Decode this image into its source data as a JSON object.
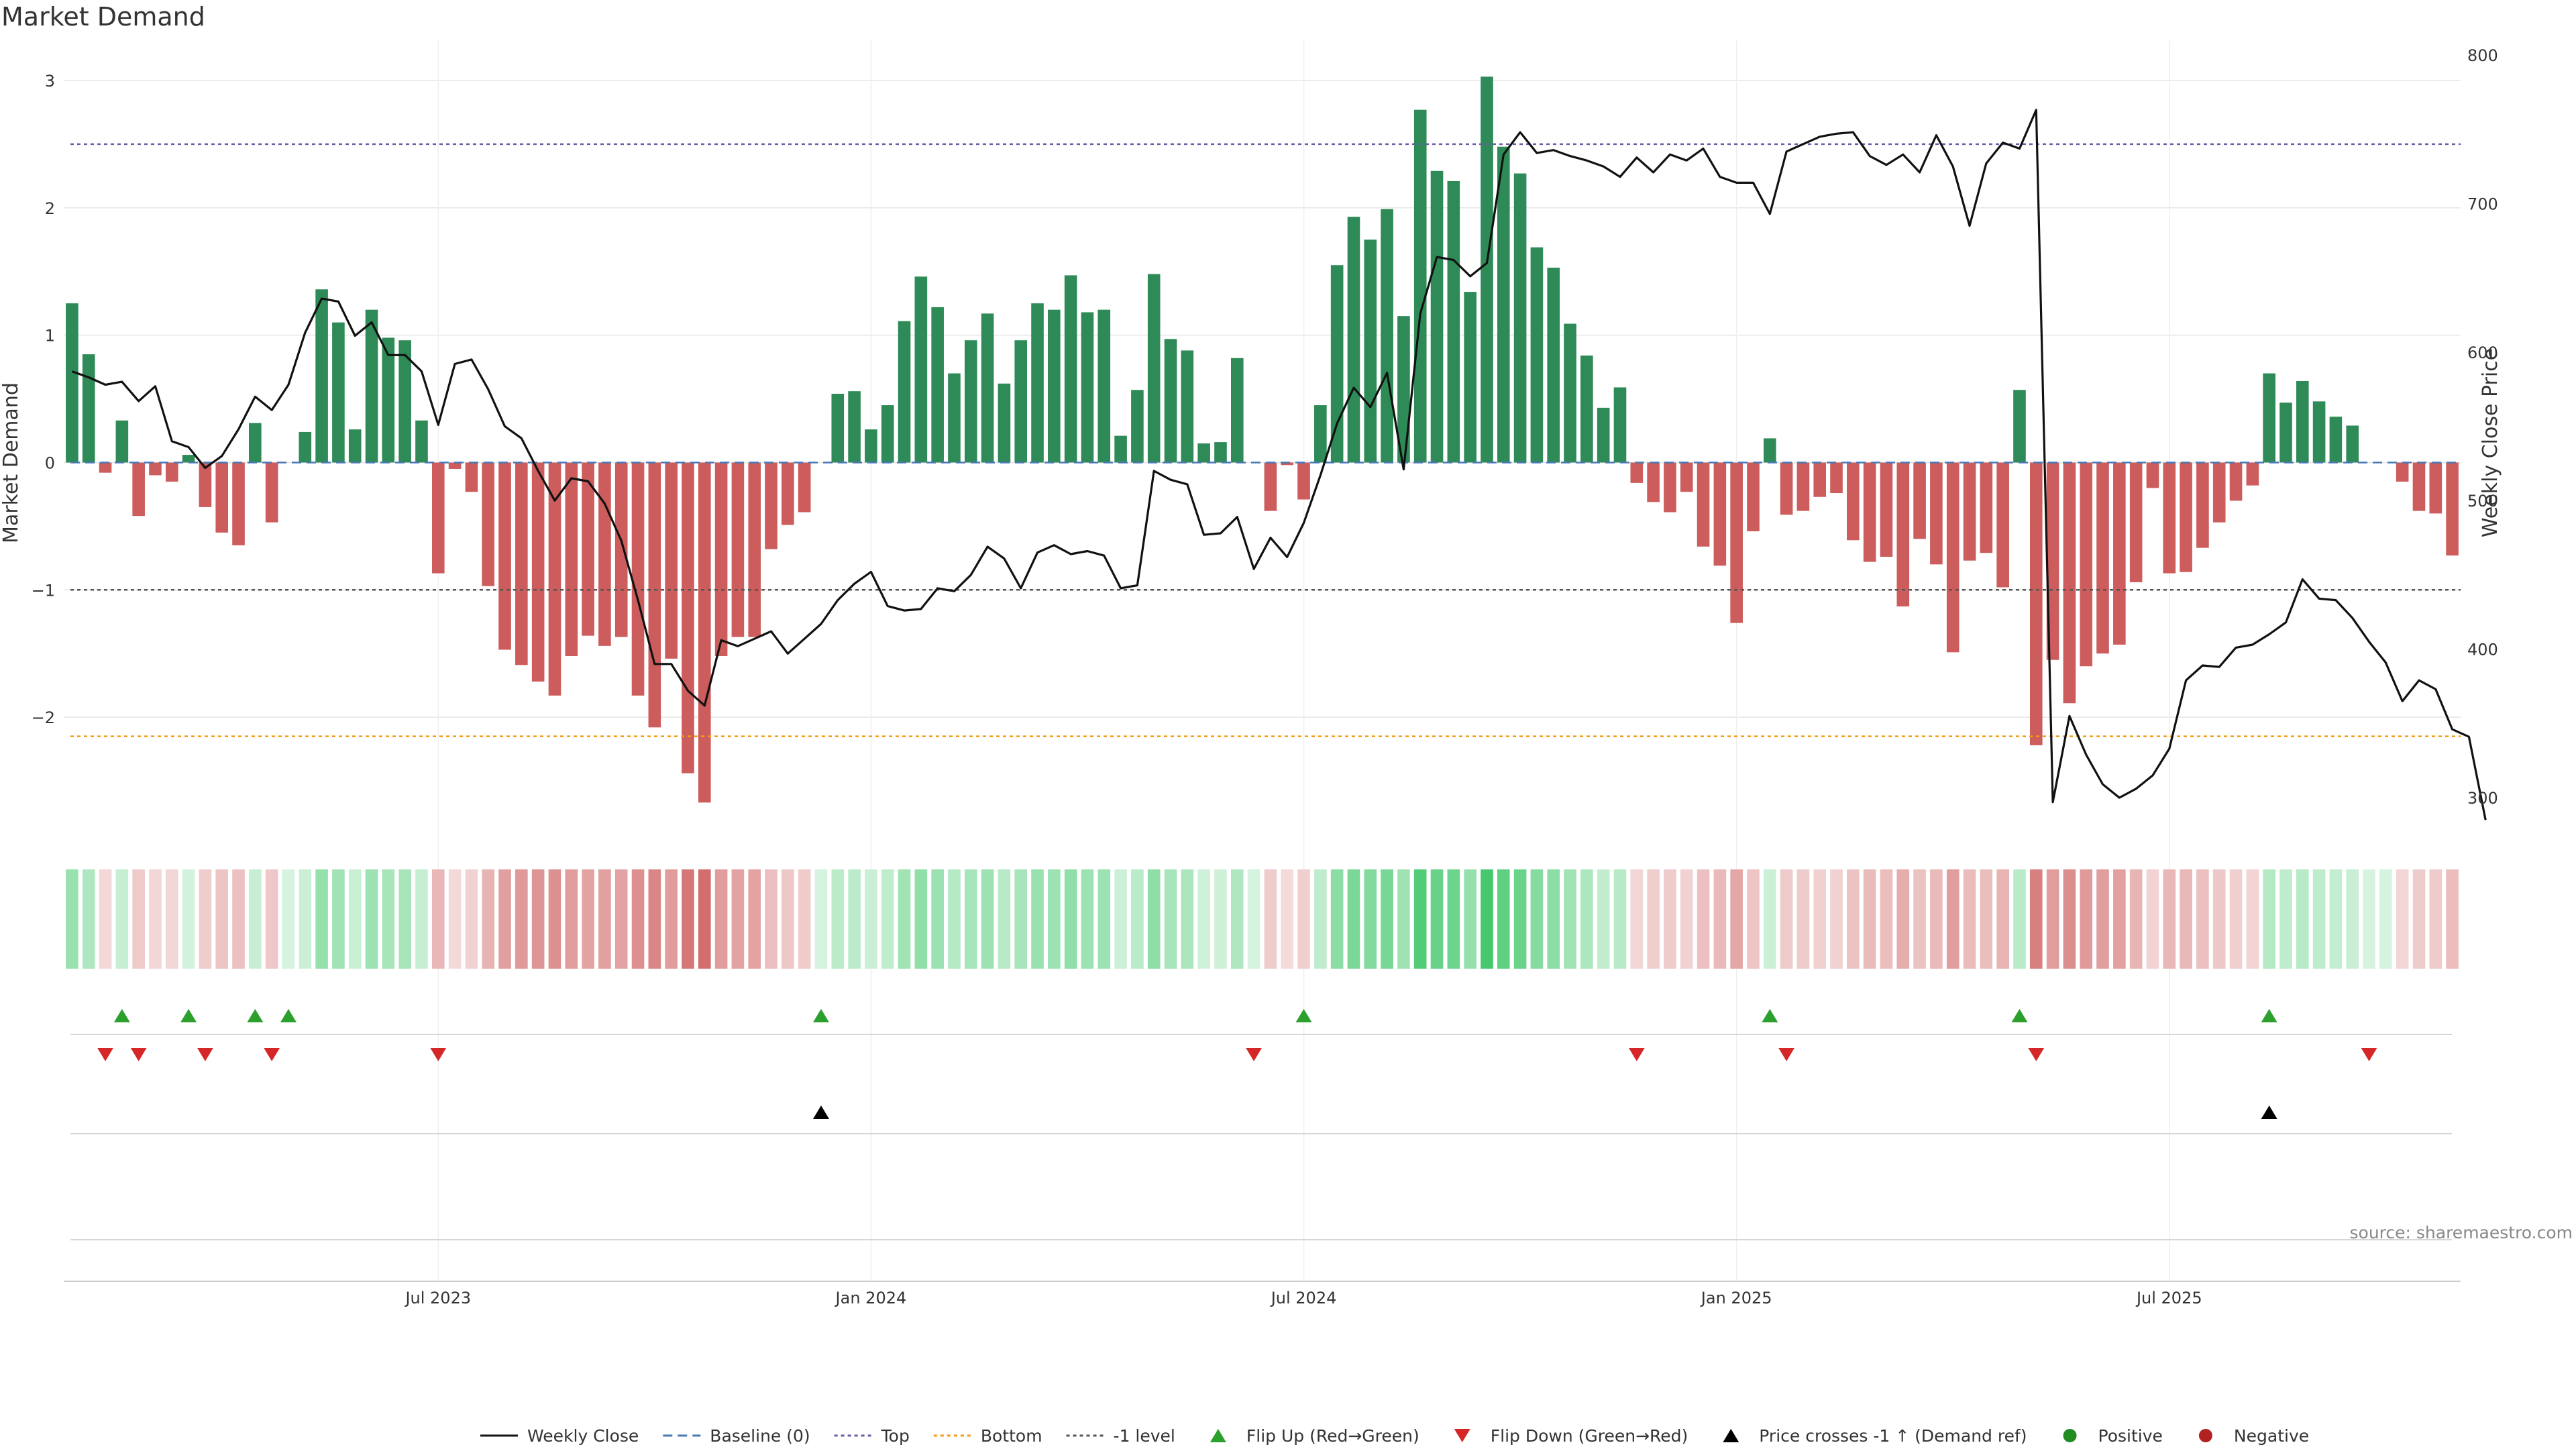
{
  "colors": {
    "positive": "#2e8b57",
    "negative": "#cd5c5c",
    "price": "#111111",
    "top_line": "#6a5aa8",
    "bottom_line": "#f39c12",
    "neg1_line": "#555555",
    "flip_up": "#2ca02c",
    "flip_down": "#d62728",
    "cross_marker": "#000000",
    "grid": "#e6e6e6"
  },
  "source_label": "source: sharemaestro.com",
  "chart_data": {
    "type": "bar",
    "title": "Market Demand",
    "ylabel": "Market Demand",
    "y2label": "Weekly Close Price",
    "ylim": [
      -2.9,
      3.2
    ],
    "y2lim": [
      277,
      800
    ],
    "yticks": [
      3,
      2,
      1,
      0,
      -1,
      -2
    ],
    "ytick_labels": [
      "3",
      "2",
      "1",
      "0",
      "−1",
      "−2"
    ],
    "y2ticks": [
      800,
      700,
      600,
      500,
      400,
      300
    ],
    "y2tick_labels": [
      "800",
      "700",
      "600",
      "500",
      "400",
      "300"
    ],
    "x_tick_indices": [
      22,
      48,
      74,
      100,
      126
    ],
    "x_tick_labels": [
      "Jul 2023",
      "Jan 2024",
      "Jul 2024",
      "Jan 2025",
      "Jul 2025"
    ],
    "weeks": 144,
    "reference_lines": {
      "top": 2.5,
      "bottom": -2.15,
      "minus_one": -1,
      "baseline": 0
    },
    "series": [
      {
        "name": "Market Demand",
        "values": [
          1.25,
          0.85,
          -0.08,
          0.33,
          -0.42,
          -0.1,
          -0.15,
          0.06,
          -0.35,
          -0.55,
          -0.65,
          0.31,
          -0.47,
          0,
          0.24,
          1.36,
          1.1,
          0.26,
          1.2,
          0.98,
          0.96,
          0.33,
          -0.87,
          -0.05,
          -0.23,
          -0.97,
          -1.47,
          -1.59,
          -1.72,
          -1.83,
          -1.52,
          -1.36,
          -1.44,
          -1.37,
          -1.83,
          -2.08,
          -1.54,
          -2.44,
          -2.67,
          -1.52,
          -1.37,
          -1.37,
          -0.68,
          -0.49,
          -0.39,
          0,
          0.54,
          0.56,
          0.26,
          0.45,
          1.11,
          1.46,
          1.22,
          0.7,
          0.96,
          1.17,
          0.62,
          0.96,
          1.25,
          1.2,
          1.47,
          1.18,
          1.2,
          0.21,
          0.57,
          1.48,
          0.97,
          0.88,
          0.15,
          0.16,
          0.82,
          0,
          -0.38,
          -0.02,
          -0.29,
          0.45,
          1.55,
          1.93,
          1.75,
          1.99,
          1.15,
          2.77,
          2.29,
          2.21,
          1.34,
          3.03,
          2.48,
          2.27,
          1.69,
          1.53,
          1.09,
          0.84,
          0.43,
          0.59,
          -0.16,
          -0.31,
          -0.39,
          -0.23,
          -0.66,
          -0.81,
          -1.26,
          -0.54,
          0.19,
          -0.41,
          -0.38,
          -0.27,
          -0.24,
          -0.61,
          -0.78,
          -0.74,
          -1.13,
          -0.6,
          -0.8,
          -1.49,
          -0.77,
          -0.71,
          -0.98,
          0.57,
          -2.22,
          -1.55,
          -1.89,
          -1.6,
          -1.5,
          -1.43,
          -0.94,
          -0.2,
          -0.87,
          -0.86,
          -0.67,
          -0.47,
          -0.3,
          -0.18,
          0.7,
          0.47,
          0.64,
          0.48,
          0.36,
          0.29,
          0,
          0,
          -0.15,
          -0.38,
          -0.4,
          -0.73
        ]
      },
      {
        "name": "Weekly Close",
        "values": [
          587,
          583,
          578,
          580,
          567,
          577,
          540,
          536,
          522,
          530,
          548,
          570,
          561,
          578,
          613,
          636,
          634,
          611,
          620,
          598,
          598,
          587,
          551,
          592,
          595,
          575,
          550,
          542,
          520,
          500,
          515,
          513,
          498,
          473,
          433,
          390,
          390,
          372,
          362,
          406,
          402,
          407,
          412,
          397,
          407,
          417,
          433,
          444,
          452,
          429,
          426,
          427,
          441,
          439,
          450,
          469,
          461,
          441,
          465,
          470,
          464,
          466,
          463,
          441,
          443,
          520,
          514,
          511,
          477,
          478,
          489,
          454,
          475,
          462,
          485,
          517,
          552,
          576,
          563,
          586,
          521,
          626,
          664,
          662,
          651,
          660,
          733,
          748,
          734,
          736,
          732,
          729,
          725,
          718,
          731,
          721,
          733,
          729,
          737,
          718,
          714,
          714,
          693,
          735,
          740,
          745,
          747,
          748,
          732,
          726,
          733,
          721,
          746,
          725,
          685,
          727,
          741,
          737,
          763,
          297,
          355,
          329,
          309,
          300,
          306,
          315,
          333,
          379,
          389,
          388,
          401,
          403,
          410,
          418,
          447,
          434,
          433,
          421,
          405,
          391,
          365,
          379,
          373,
          346,
          341,
          285
        ]
      }
    ],
    "flip_up_indices": [
      3,
      7,
      11,
      13,
      45,
      74,
      102,
      117,
      132
    ],
    "flip_down_indices": [
      2,
      4,
      8,
      12,
      22,
      71,
      94,
      103,
      118,
      138
    ],
    "price_cross_indices": [
      45,
      132
    ],
    "legend": [
      {
        "label": "Weekly Close",
        "kind": "solid"
      },
      {
        "label": "Baseline (0)",
        "kind": "dashed-blue"
      },
      {
        "label": "Top",
        "kind": "dotted-purple"
      },
      {
        "label": "Bottom",
        "kind": "dotted-orange"
      },
      {
        "label": "-1 level",
        "kind": "dotted-gray"
      },
      {
        "label": "Flip Up (Red→Green)",
        "kind": "tri-up-green"
      },
      {
        "label": "Flip Down (Green→Red)",
        "kind": "tri-down-red"
      },
      {
        "label": "Price crosses -1 ↑ (Demand ref)",
        "kind": "tri-up-black"
      },
      {
        "label": "Positive",
        "kind": "dot-green"
      },
      {
        "label": "Negative",
        "kind": "dot-red"
      }
    ]
  }
}
